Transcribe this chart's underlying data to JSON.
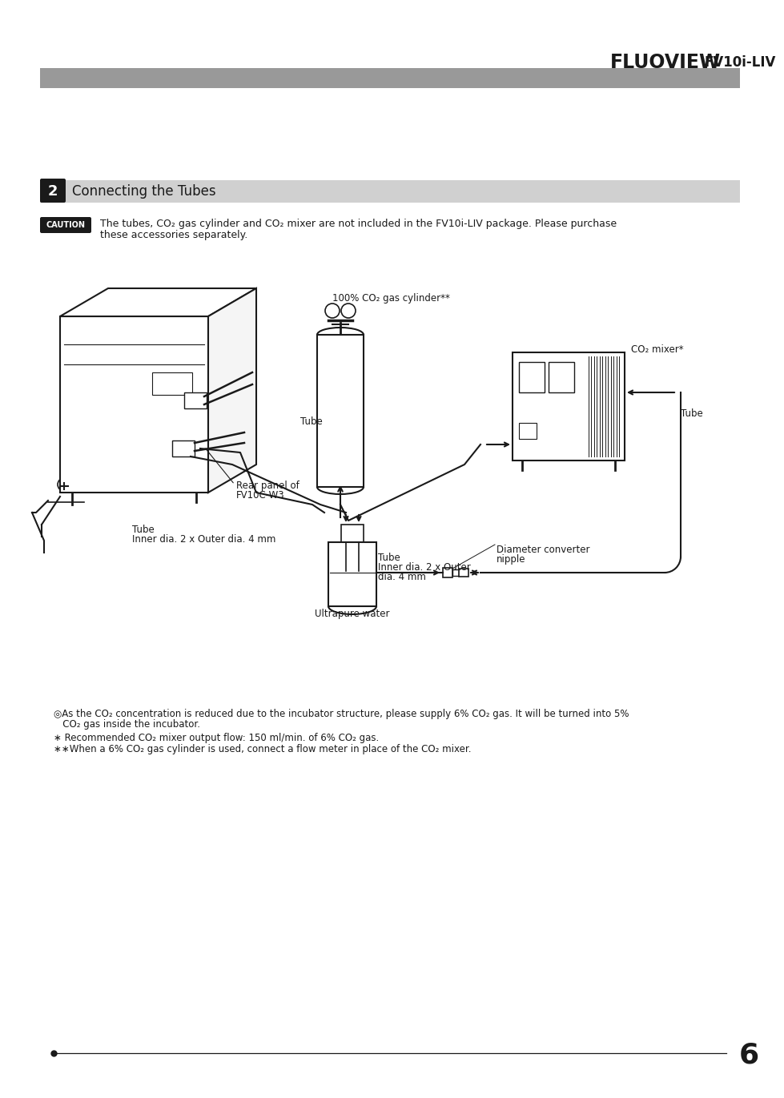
{
  "title_fluoview": "FLUOVIEW",
  "title_model": "FV10i-LIV",
  "header_bar_color": "#999999",
  "section_number": "2",
  "section_title": "Connecting the Tubes",
  "section_bar_color": "#d0d0d0",
  "section_num_bg": "#1a1a1a",
  "caution_label": "CAUTION",
  "caution_bg": "#1a1a1a",
  "caution_text_line1": "The tubes, CO₂ gas cylinder and CO₂ mixer are not included in the FV10i-LIV package. Please purchase",
  "caution_text_line2": "these accessories separately.",
  "label_cylinder": "100% CO₂ gas cylinder**",
  "label_tube1": "Tube",
  "label_co2mixer": "CO₂ mixer*",
  "label_tube2": "Tube",
  "label_rear_panel_line1": "Rear panel of",
  "label_rear_panel_line2": "FV10C-W3",
  "label_tube3_line1": "Tube",
  "label_tube3_line2": "Inner dia. 2 x Outer dia. 4 mm",
  "label_tube4_line1": "Tube",
  "label_tube4_line2": "Inner dia. 2 x Outer",
  "label_tube4_line3": "dia. 4 mm",
  "label_ultrapure": "Ultrapure water",
  "label_diameter_line1": "Diameter converter",
  "label_diameter_line2": "nipple",
  "note1": "◎As the CO₂ concentration is reduced due to the incubator structure, please supply 6% CO₂ gas. It will be turned into 5%",
  "note1b": "   CO₂ gas inside the incubator.",
  "note2": "∗ Recommended CO₂ mixer output flow: 150 ml/min. of 6% CO₂ gas.",
  "note3": "∗∗When a 6% CO₂ gas cylinder is used, connect a flow meter in place of the CO₂ mixer.",
  "page_number": "6",
  "bg_color": "#ffffff",
  "text_color": "#1a1a1a",
  "line_color": "#1a1a1a"
}
